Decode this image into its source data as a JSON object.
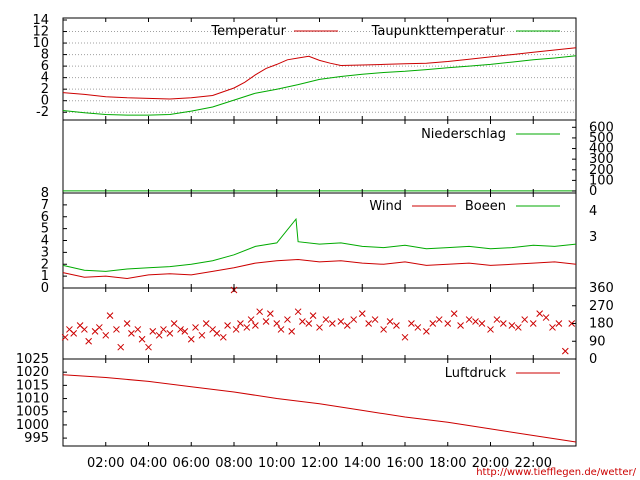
{
  "colors": {
    "red": "#cc0000",
    "green": "#00aa00",
    "url": "#cc0000"
  },
  "footer_url": "http://www.tiefflegen.de/wetter/",
  "time_axis": {
    "range_hours": [
      0,
      24
    ],
    "tick_hours": [
      2,
      4,
      6,
      8,
      10,
      12,
      14,
      16,
      18,
      20,
      22
    ],
    "tick_labels": [
      "02:00",
      "04:00",
      "06:00",
      "08:00",
      "10:00",
      "12:00",
      "14:00",
      "16:00",
      "18:00",
      "20:00",
      "22:00"
    ]
  },
  "chart_data": [
    {
      "type": "line",
      "ylim": [
        -3,
        14
      ],
      "yticks": [
        "14",
        "12",
        "10",
        "8",
        "6",
        "4",
        "2",
        "0",
        "-2"
      ],
      "ytick_values": [
        14,
        12,
        10,
        8,
        6,
        4,
        2,
        0,
        -2
      ],
      "grid": true,
      "legend": "top-right",
      "series": [
        {
          "name": "Temperatur",
          "color": "#cc0000",
          "x": [
            0,
            1,
            2,
            3,
            4,
            5,
            6,
            7,
            8,
            8.5,
            9,
            9.5,
            10,
            10.5,
            11,
            11.5,
            12,
            12.5,
            13,
            14,
            15,
            16,
            17,
            18,
            19,
            20,
            21,
            22,
            23,
            24
          ],
          "y": [
            1.4,
            1.1,
            0.7,
            0.5,
            0.4,
            0.3,
            0.5,
            0.9,
            2.2,
            3.2,
            4.5,
            5.6,
            6.3,
            7.1,
            7.4,
            7.7,
            7.0,
            6.5,
            6.1,
            6.2,
            6.3,
            6.4,
            6.5,
            6.8,
            7.2,
            7.6,
            8.0,
            8.4,
            8.8,
            9.2
          ]
        },
        {
          "name": "Taupunkttemperatur",
          "color": "#00aa00",
          "x": [
            0,
            1,
            2,
            3,
            4,
            5,
            6,
            7,
            8,
            9,
            10,
            11,
            12,
            13,
            14,
            15,
            16,
            17,
            18,
            19,
            20,
            21,
            22,
            23,
            24
          ],
          "y": [
            -1.7,
            -2.1,
            -2.4,
            -2.5,
            -2.5,
            -2.4,
            -1.8,
            -1.1,
            0.1,
            1.3,
            2.0,
            2.8,
            3.7,
            4.2,
            4.6,
            4.9,
            5.1,
            5.4,
            5.7,
            6.0,
            6.3,
            6.7,
            7.1,
            7.4,
            7.8
          ]
        }
      ]
    },
    {
      "type": "line",
      "ylim": [
        0,
        650
      ],
      "yticks": [
        "600",
        "500",
        "400",
        "300",
        "200",
        "100",
        "0"
      ],
      "ytick_values": [
        600,
        500,
        400,
        300,
        200,
        100,
        0
      ],
      "legend": "top-right",
      "series": [
        {
          "name": "Niederschlag",
          "color": "#00aa00",
          "x": [
            0,
            24
          ],
          "y": [
            0.5,
            0.5
          ]
        }
      ]
    },
    {
      "type": "line",
      "ylim": [
        0,
        8
      ],
      "yticks": [
        "8",
        "7",
        "6",
        "5",
        "4",
        "3",
        "2",
        "1",
        "0"
      ],
      "ytick_values": [
        8,
        7,
        6,
        5,
        4,
        3,
        2,
        1,
        0
      ],
      "y2ticks": [
        "4",
        "3"
      ],
      "y2tick_values": [
        6.5,
        4.3
      ],
      "legend": "top-right",
      "series": [
        {
          "name": "Wind",
          "color": "#cc0000",
          "x": [
            0,
            1,
            2,
            3,
            4,
            5,
            6,
            7,
            8,
            9,
            10,
            11,
            12,
            13,
            14,
            15,
            16,
            17,
            18,
            19,
            20,
            21,
            22,
            23,
            24
          ],
          "y": [
            1.3,
            0.9,
            1.0,
            0.8,
            1.1,
            1.2,
            1.1,
            1.4,
            1.7,
            2.1,
            2.3,
            2.4,
            2.2,
            2.3,
            2.1,
            2.0,
            2.2,
            1.9,
            2.0,
            2.1,
            1.9,
            2.0,
            2.1,
            2.2,
            2.0
          ]
        },
        {
          "name": "Boeen",
          "color": "#00aa00",
          "x": [
            0,
            1,
            2,
            3,
            4,
            5,
            6,
            7,
            8,
            9,
            10,
            10.9,
            11,
            12,
            13,
            14,
            15,
            16,
            17,
            18,
            19,
            20,
            21,
            22,
            23,
            24
          ],
          "y": [
            1.9,
            1.5,
            1.4,
            1.6,
            1.7,
            1.8,
            2.0,
            2.3,
            2.8,
            3.5,
            3.8,
            5.8,
            3.9,
            3.7,
            3.8,
            3.5,
            3.4,
            3.6,
            3.3,
            3.4,
            3.5,
            3.3,
            3.4,
            3.6,
            3.5,
            3.7
          ]
        }
      ]
    },
    {
      "type": "scatter",
      "ylim": [
        0,
        360
      ],
      "yticks": [
        "360",
        "270",
        "180",
        "90",
        "0"
      ],
      "ytick_values": [
        360,
        270,
        180,
        90,
        0
      ],
      "marker": "x",
      "series": [
        {
          "color": "#cc0000",
          "x": [
            0.1,
            0.3,
            0.5,
            0.8,
            1.0,
            1.2,
            1.5,
            1.7,
            2.0,
            2.2,
            2.5,
            2.7,
            3.0,
            3.2,
            3.5,
            3.7,
            4.0,
            4.2,
            4.5,
            4.7,
            5.0,
            5.2,
            5.5,
            5.7,
            6.0,
            6.2,
            6.5,
            6.7,
            7.0,
            7.2,
            7.5,
            7.7,
            8.0,
            8.1,
            8.3,
            8.6,
            8.8,
            9.0,
            9.2,
            9.5,
            9.7,
            10.0,
            10.2,
            10.5,
            10.7,
            11.0,
            11.2,
            11.5,
            11.7,
            12.0,
            12.3,
            12.6,
            13.0,
            13.3,
            13.6,
            14.0,
            14.3,
            14.6,
            15.0,
            15.3,
            15.6,
            16.0,
            16.3,
            16.6,
            17.0,
            17.3,
            17.6,
            18.0,
            18.3,
            18.6,
            19.0,
            19.3,
            19.6,
            20.0,
            20.3,
            20.6,
            21.0,
            21.3,
            21.6,
            22.0,
            22.3,
            22.6,
            22.9,
            23.2,
            23.5,
            23.8
          ],
          "y": [
            110,
            150,
            130,
            170,
            150,
            90,
            140,
            160,
            120,
            220,
            150,
            60,
            180,
            130,
            150,
            100,
            60,
            140,
            120,
            150,
            130,
            180,
            150,
            140,
            100,
            160,
            120,
            180,
            150,
            130,
            110,
            170,
            350,
            150,
            180,
            160,
            200,
            170,
            240,
            190,
            230,
            180,
            150,
            200,
            140,
            240,
            190,
            180,
            220,
            160,
            200,
            180,
            190,
            170,
            200,
            230,
            180,
            200,
            150,
            190,
            170,
            110,
            180,
            160,
            140,
            180,
            200,
            180,
            230,
            170,
            200,
            190,
            180,
            150,
            200,
            180,
            170,
            160,
            200,
            180,
            230,
            210,
            160,
            180,
            40,
            180
          ]
        }
      ]
    },
    {
      "type": "line",
      "ylim": [
        992,
        1025
      ],
      "yticks": [
        "1025",
        "1020",
        "1015",
        "1010",
        "1005",
        "1000",
        "995"
      ],
      "ytick_values": [
        1025,
        1020,
        1015,
        1010,
        1005,
        1000,
        995
      ],
      "legend": "top-right",
      "series": [
        {
          "name": "Luftdruck",
          "color": "#cc0000",
          "x": [
            0,
            2,
            4,
            6,
            8,
            10,
            12,
            14,
            16,
            18,
            20,
            22,
            24
          ],
          "y": [
            1019.0,
            1018.0,
            1016.5,
            1014.5,
            1012.5,
            1010.0,
            1008.0,
            1005.5,
            1003.0,
            1001.0,
            998.5,
            996.0,
            993.5
          ]
        }
      ]
    }
  ]
}
